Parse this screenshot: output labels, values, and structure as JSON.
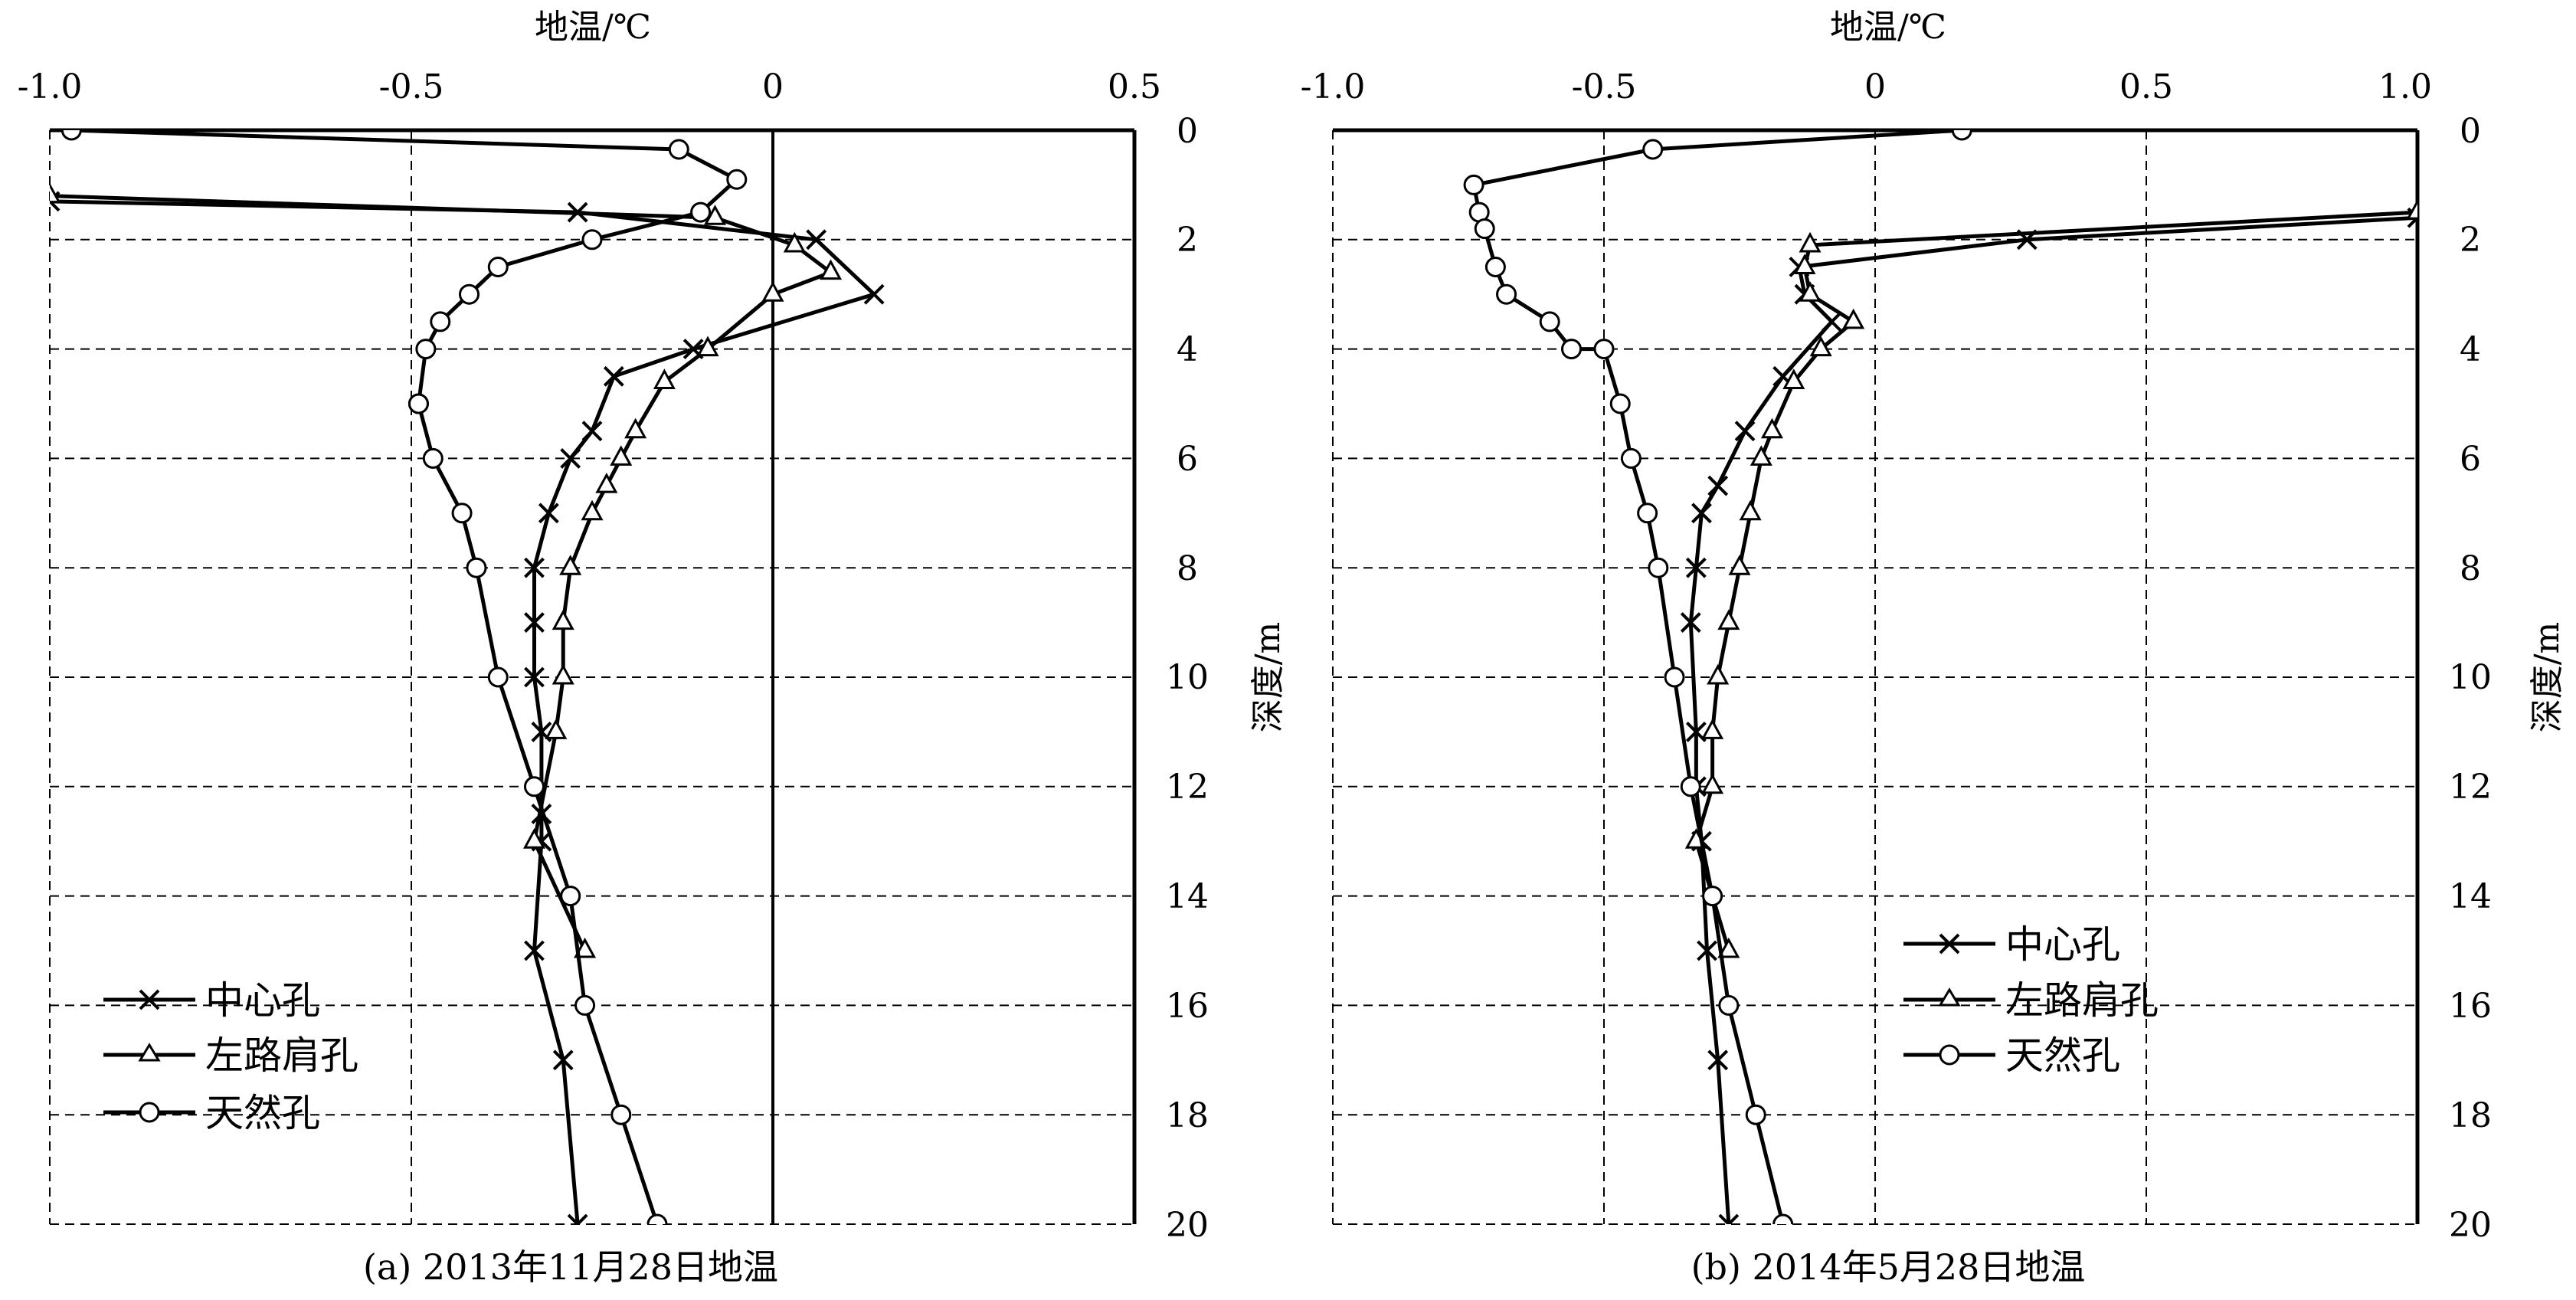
{
  "legend": [
    "中心孔",
    "左路肩孔",
    "天然孔"
  ],
  "chart_data": [
    {
      "type": "line",
      "caption": "(a) 2013年11月28日地温",
      "xlabel": "地温/℃",
      "ylabel": "深度/m",
      "xlim": [
        -1.0,
        0.5
      ],
      "ylim": [
        0,
        20
      ],
      "y_inverted": true,
      "x_ticks": [
        "-1.0",
        "-0.5",
        "0",
        "0.5"
      ],
      "y_ticks": [
        "0",
        "2",
        "4",
        "6",
        "8",
        "10",
        "12",
        "14",
        "16",
        "18",
        "20"
      ],
      "grid": true,
      "zero_line": true,
      "legend_position": "bottom-left",
      "series": [
        {
          "name": "中心孔",
          "marker": "x",
          "x": [
            -1.0,
            -0.27,
            0.06,
            0.14,
            -0.11,
            -0.22,
            -0.25,
            -0.28,
            -0.31,
            -0.33,
            -0.33,
            -0.33,
            -0.32,
            -0.32,
            -0.32,
            -0.33,
            -0.29,
            -0.27
          ],
          "y": [
            1.3,
            1.5,
            2.0,
            3.0,
            4.0,
            4.5,
            5.5,
            6.0,
            7.0,
            8.0,
            9.0,
            10.0,
            11.0,
            12.5,
            13.0,
            15.0,
            17.0,
            20.0
          ]
        },
        {
          "name": "左路肩孔",
          "marker": "triangle",
          "x": [
            -1.0,
            -0.08,
            0.03,
            0.08,
            0.0,
            -0.09,
            -0.15,
            -0.19,
            -0.21,
            -0.23,
            -0.25,
            -0.28,
            -0.29,
            -0.29,
            -0.3,
            -0.33,
            -0.26
          ],
          "y": [
            1.2,
            1.6,
            2.1,
            2.6,
            3.0,
            4.0,
            4.6,
            5.5,
            6.0,
            6.5,
            7.0,
            8.0,
            9.0,
            10.0,
            11.0,
            13.0,
            15.0
          ]
        },
        {
          "name": "天然孔",
          "marker": "circle",
          "x": [
            -0.97,
            -0.13,
            -0.05,
            -0.1,
            -0.25,
            -0.38,
            -0.42,
            -0.46,
            -0.48,
            -0.49,
            -0.49,
            -0.47,
            -0.43,
            -0.41,
            -0.38,
            -0.33,
            -0.28,
            -0.26,
            -0.21,
            -0.16
          ],
          "y": [
            0.0,
            0.35,
            0.9,
            1.5,
            2.0,
            2.5,
            3.0,
            3.5,
            4.0,
            5.0,
            5.0,
            6.0,
            7.0,
            8.0,
            10.0,
            12.0,
            14.0,
            16.0,
            18.0,
            20.0
          ]
        }
      ]
    },
    {
      "type": "line",
      "caption": "(b) 2014年5月28日地温",
      "xlabel": "地温/℃",
      "ylabel": "深度/m",
      "xlim": [
        -1.0,
        1.0
      ],
      "ylim": [
        0,
        20
      ],
      "y_inverted": true,
      "x_ticks": [
        "-1.0",
        "-0.5",
        "0",
        "0.5",
        "1.0"
      ],
      "y_ticks": [
        "0",
        "2",
        "4",
        "6",
        "8",
        "10",
        "12",
        "14",
        "16",
        "18",
        "20"
      ],
      "grid": true,
      "zero_line": false,
      "legend_position": "bottom-right",
      "series": [
        {
          "name": "中心孔",
          "marker": "x",
          "x": [
            1.0,
            0.28,
            -0.14,
            -0.13,
            -0.08,
            -0.17,
            -0.24,
            -0.29,
            -0.32,
            -0.33,
            -0.34,
            -0.33,
            -0.33,
            -0.32,
            -0.31,
            -0.29,
            -0.27
          ],
          "y": [
            1.6,
            2.0,
            2.5,
            3.0,
            3.5,
            4.5,
            5.5,
            6.5,
            7.0,
            8.0,
            9.0,
            11.0,
            12.0,
            13.0,
            15.0,
            17.0,
            20.0
          ]
        },
        {
          "name": "左路肩孔",
          "marker": "triangle",
          "x": [
            1.0,
            -0.12,
            -0.13,
            -0.12,
            -0.04,
            -0.1,
            -0.15,
            -0.19,
            -0.21,
            -0.23,
            -0.25,
            -0.27,
            -0.29,
            -0.3,
            -0.3,
            -0.33,
            -0.27
          ],
          "y": [
            1.5,
            2.1,
            2.5,
            3.0,
            3.5,
            4.0,
            4.6,
            5.5,
            6.0,
            7.0,
            8.0,
            9.0,
            10.0,
            11.0,
            12.0,
            13.0,
            15.0
          ]
        },
        {
          "name": "天然孔",
          "marker": "circle",
          "x": [
            0.16,
            -0.41,
            -0.74,
            -0.73,
            -0.72,
            -0.7,
            -0.68,
            -0.6,
            -0.56,
            -0.5,
            -0.47,
            -0.45,
            -0.42,
            -0.4,
            -0.37,
            -0.34,
            -0.3,
            -0.27,
            -0.22,
            -0.17
          ],
          "y": [
            0.0,
            0.35,
            1.0,
            1.5,
            1.8,
            2.5,
            3.0,
            3.5,
            4.0,
            4.0,
            5.0,
            6.0,
            7.0,
            8.0,
            10.0,
            12.0,
            14.0,
            16.0,
            18.0,
            20.0
          ]
        }
      ]
    }
  ]
}
